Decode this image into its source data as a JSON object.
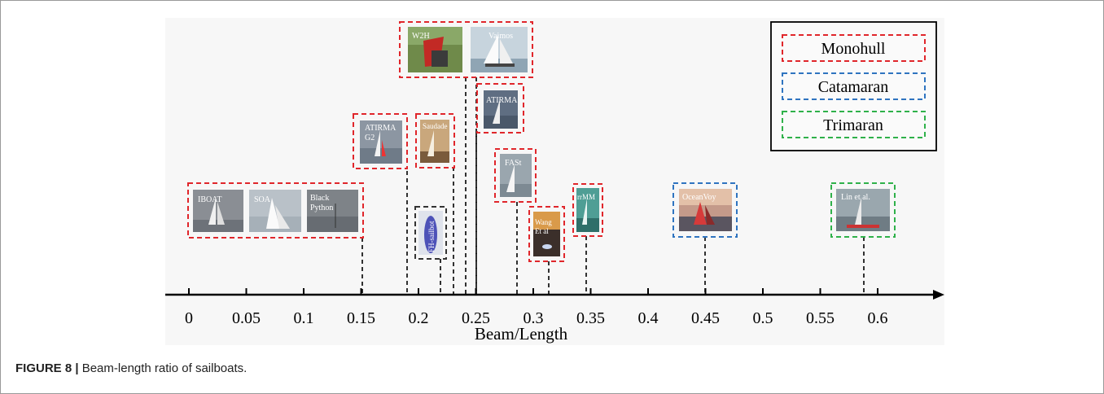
{
  "figure": {
    "xlabel": "Beam/Length",
    "ticks": [
      "0",
      "0.05",
      "0.1",
      "0.15",
      "0.2",
      "0.25",
      "0.3",
      "0.35",
      "0.4",
      "0.45",
      "0.5",
      "0.55",
      "0.6"
    ]
  },
  "legend": {
    "items": [
      {
        "label": "Monohull",
        "color": "#e0262b"
      },
      {
        "label": "Catamaran",
        "color": "#2f74c0"
      },
      {
        "label": "Trimaran",
        "color": "#2fb14a"
      }
    ]
  },
  "boats": {
    "iboat": "IBOAT",
    "soa": "SOA",
    "black_python": [
      "Black",
      "Python"
    ],
    "atirma_g2": [
      "ATIRMA",
      "G2"
    ],
    "saudade": "Saudade",
    "fh_sailbot": "FH-sailbot",
    "w2h": "W2H",
    "vaimos": "Vaimos",
    "atirma": "ATIRMA",
    "fast": "FASt",
    "wang": [
      "Wang",
      "Et al"
    ],
    "rmm": "rrMM",
    "oceanvoy": "OceanVoy",
    "lin": "Lin et al."
  },
  "caption": {
    "label": "FIGURE 8 |",
    "text": " Beam-length ratio of sailboats."
  }
}
